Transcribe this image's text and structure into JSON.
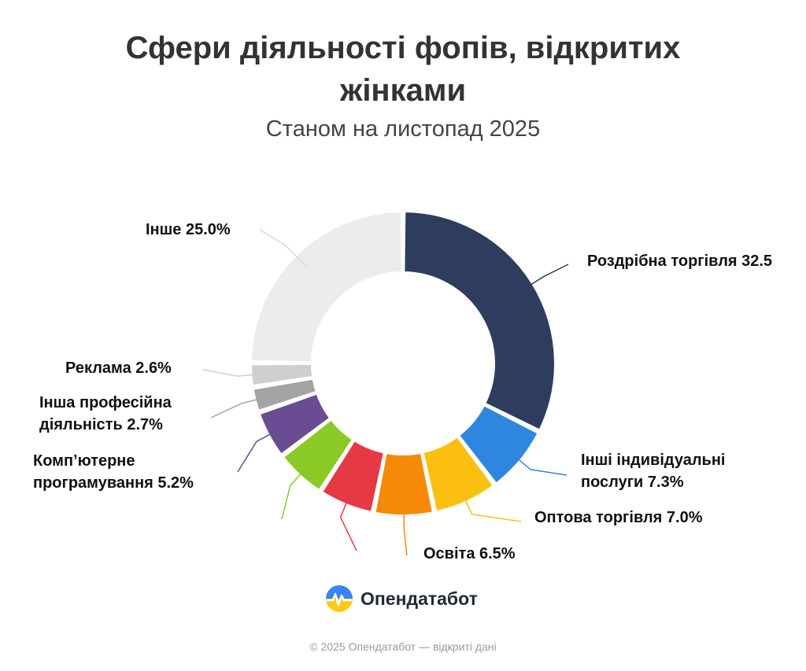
{
  "title": "Сфери діяльності фопів, відкритих жінками",
  "subtitle": "Станом на листопад 2025",
  "brand": {
    "name": "Опендатабот",
    "logo_icon": "opendatabot-logo-icon"
  },
  "footer": "© 2025 Опендатабот — відкриті дані",
  "chart_data": {
    "type": "pie",
    "variant": "donut",
    "title": "Сфери діяльності фопів, відкритих жінками",
    "subtitle": "Станом на листопад 2025",
    "slices": [
      {
        "label": "Роздрібна торгівля",
        "value": 32.5,
        "display": "Роздрібна торгівля 32.5",
        "color": "#2e3d5e"
      },
      {
        "label": "Інші індивідуальні послуги",
        "value": 7.3,
        "display": "Інші індивідуальні послуги 7.3%",
        "color": "#2e86de"
      },
      {
        "label": "Оптова торгівля",
        "value": 7.0,
        "display": "Оптова торгівля 7.0%",
        "color": "#fbbf0f"
      },
      {
        "label": "Освіта",
        "value": 6.5,
        "display": "Освіта 6.5%",
        "color": "#f68a08"
      },
      {
        "label": "",
        "value": 6.0,
        "display": "",
        "color": "#e63946"
      },
      {
        "label": "",
        "value": 5.5,
        "display": "",
        "color": "#8bc926"
      },
      {
        "label": "Комп’ютерне програмування",
        "value": 5.2,
        "display": "Комп’ютерне програмування 5.2%",
        "color": "#6a4c93"
      },
      {
        "label": "Інша професійна діяльність",
        "value": 2.7,
        "display": "Інша професійна діяльність 2.7%",
        "color": "#a3a3a3"
      },
      {
        "label": "Реклама",
        "value": 2.6,
        "display": "Реклама 2.6%",
        "color": "#cfcfcf"
      },
      {
        "label": "Інше",
        "value": 25.0,
        "display": "Інше 25.0%",
        "color": "#ececec"
      }
    ]
  }
}
